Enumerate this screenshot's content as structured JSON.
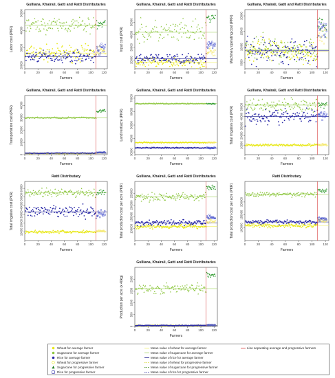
{
  "chart_data": [
    {
      "type": "scatter",
      "title": "Gulliana, Khairali, Gatti and Ratti Distributaries",
      "xlabel": "Farmers",
      "ylabel": "Labor cost (PKR)",
      "xlim": [
        0,
        125
      ],
      "ylim": [
        18000,
        52000
      ],
      "xticks": [
        0,
        20,
        40,
        60,
        80,
        100,
        120
      ],
      "yticks": [
        20000,
        30000,
        40000,
        50000
      ],
      "separator_x": 108,
      "series": [
        {
          "key": "wheat",
          "n": 108,
          "center": 27000,
          "spread": 2200
        },
        {
          "key": "sugarcane",
          "n": 108,
          "center": 43000,
          "spread": 2200
        },
        {
          "key": "rice",
          "n": 108,
          "center": 25000,
          "spread": 1600
        },
        {
          "key": "wheat_p",
          "n": 17,
          "center": 28500,
          "spread": 1200
        },
        {
          "key": "sugarcane_p",
          "n": 17,
          "center": 43500,
          "spread": 1500
        },
        {
          "key": "rice_p",
          "n": 17,
          "center": 29500,
          "spread": 1500
        }
      ],
      "means": {
        "wheat": 27000,
        "sugarcane": 43000,
        "rice": 25000
      }
    },
    {
      "type": "scatter",
      "title": "Gulliana, Khairali, Gatti and Ratti Distributaries",
      "xlabel": "Farmers",
      "ylabel": "Input cost (PKR)",
      "xlim": [
        0,
        125
      ],
      "ylim": [
        13000,
        60000
      ],
      "xticks": [
        0,
        20,
        40,
        60,
        80,
        100,
        120
      ],
      "yticks": [
        20000,
        30000,
        40000,
        50000
      ],
      "separator_x": 108,
      "series": [
        {
          "key": "wheat",
          "n": 108,
          "center": 18000,
          "spread": 2000
        },
        {
          "key": "sugarcane",
          "n": 108,
          "center": 42000,
          "spread": 4500
        },
        {
          "key": "rice",
          "n": 108,
          "center": 21000,
          "spread": 1800
        },
        {
          "key": "wheat_p",
          "n": 17,
          "center": 26500,
          "spread": 1500
        },
        {
          "key": "sugarcane_p",
          "n": 17,
          "center": 54000,
          "spread": 2000
        },
        {
          "key": "rice_p",
          "n": 17,
          "center": 32500,
          "spread": 1500
        }
      ],
      "means": {
        "wheat": 18000,
        "sugarcane": 42000,
        "rice": 21000
      }
    },
    {
      "type": "scatter",
      "title": "Gulliana, Khairali, Gatti and Ratti Distributaries",
      "xlabel": "Farmers",
      "ylabel": "Machinery operating cost (PKR)",
      "xlim": [
        0,
        125
      ],
      "ylim": [
        3000,
        22000
      ],
      "xticks": [
        0,
        20,
        40,
        60,
        80,
        100,
        120
      ],
      "yticks": [
        5000,
        10000,
        15000,
        20000
      ],
      "separator_x": 108,
      "series": [
        {
          "key": "wheat",
          "n": 108,
          "center": 8500,
          "spread": 1900
        },
        {
          "key": "sugarcane",
          "n": 108,
          "center": 9200,
          "spread": 2000
        },
        {
          "key": "rice",
          "n": 108,
          "center": 8800,
          "spread": 2200
        },
        {
          "key": "wheat_p",
          "n": 17,
          "center": 14500,
          "spread": 1500
        },
        {
          "key": "sugarcane_p",
          "n": 17,
          "center": 16500,
          "spread": 1500
        },
        {
          "key": "rice_p",
          "n": 17,
          "center": 15500,
          "spread": 1500
        }
      ],
      "means": {
        "wheat": 8500,
        "sugarcane": 9200,
        "rice": 8800
      }
    },
    {
      "type": "scatter",
      "title": "Gulliana, Khairali, Gatti and Ratti Distributaries",
      "xlabel": "Farmers",
      "ylabel": "Transportation cost (PKR)",
      "xlim": [
        0,
        125
      ],
      "ylim": [
        0,
        48000
      ],
      "xticks": [
        0,
        20,
        40,
        60,
        80,
        100,
        120
      ],
      "yticks": [
        0,
        10000,
        20000,
        30000,
        40000
      ],
      "separator_x": 108,
      "series": [
        {
          "key": "wheat",
          "n": 108,
          "center": 1000,
          "spread": 150
        },
        {
          "key": "sugarcane",
          "n": 108,
          "center": 30000,
          "spread": 300
        },
        {
          "key": "rice",
          "n": 108,
          "center": 1200,
          "spread": 150
        },
        {
          "key": "wheat_p",
          "n": 17,
          "center": 1500,
          "spread": 150
        },
        {
          "key": "sugarcane_p",
          "n": 17,
          "center": 35500,
          "spread": 600
        },
        {
          "key": "rice_p",
          "n": 17,
          "center": 1700,
          "spread": 150
        }
      ],
      "means": {
        "wheat": 1000,
        "sugarcane": 30000,
        "rice": 1200
      }
    },
    {
      "type": "scatter",
      "title": "Gulliana, Khairali, Gatti and Ratti Distributaries",
      "xlabel": "Farmers",
      "ylabel": "Land rent/acre (PKR)",
      "xlim": [
        0,
        125
      ],
      "ylim": [
        28000,
        72000
      ],
      "xticks": [
        0,
        20,
        40,
        60,
        80,
        100,
        120
      ],
      "yticks": [
        30000,
        40000,
        50000,
        60000,
        70000
      ],
      "separator_x": null,
      "series": [
        {
          "key": "wheat",
          "n": 108,
          "center": 37000,
          "spread": 200
        },
        {
          "key": "sugarcane",
          "n": 108,
          "center": 66000,
          "spread": 200
        },
        {
          "key": "rice",
          "n": 108,
          "center": 33000,
          "spread": 200
        },
        {
          "key": "wheat_p",
          "n": 17,
          "center": 37000,
          "spread": 200
        },
        {
          "key": "sugarcane_p",
          "n": 17,
          "center": 66000,
          "spread": 200
        },
        {
          "key": "rice_p",
          "n": 17,
          "center": 33000,
          "spread": 200
        }
      ],
      "means": {
        "wheat": 37000,
        "sugarcane": 66000,
        "rice": 33000
      }
    },
    {
      "type": "scatter",
      "title": "Gulliana, Khairali, Gatti and Ratti Distributaries",
      "xlabel": "Farmers",
      "ylabel": "Total irrigation cost (PKR)",
      "xlim": [
        0,
        125
      ],
      "ylim": [
        0,
        62000
      ],
      "xticks": [
        0,
        20,
        40,
        60,
        80,
        100,
        120
      ],
      "yticks": [
        10000,
        20000,
        30000,
        40000,
        50000
      ],
      "separator_x": 108,
      "series": [
        {
          "key": "wheat",
          "n": 108,
          "center": 10000,
          "spread": 600
        },
        {
          "key": "sugarcane",
          "n": 108,
          "center": 52000,
          "spread": 3500
        },
        {
          "key": "rice",
          "n": 108,
          "center": 40000,
          "spread": 4000
        },
        {
          "key": "wheat_p",
          "n": 17,
          "center": 10500,
          "spread": 500
        },
        {
          "key": "sugarcane_p",
          "n": 17,
          "center": 53000,
          "spread": 2000
        },
        {
          "key": "rice_p",
          "n": 17,
          "center": 42000,
          "spread": 2500
        }
      ],
      "means": {
        "wheat": 10000,
        "sugarcane": 52000,
        "rice": 40000
      }
    },
    {
      "type": "scatter",
      "title": "Ratti Distributary",
      "xlabel": "Farmers",
      "ylabel": "Total irrigation cost (PKR)",
      "xlim": [
        0,
        125
      ],
      "ylim": [
        0,
        68000
      ],
      "xticks": [
        0,
        20,
        40,
        60,
        80,
        100,
        120
      ],
      "yticks": [
        10000,
        20000,
        30000,
        40000,
        50000,
        60000
      ],
      "separator_x": 108,
      "series": [
        {
          "key": "wheat",
          "n": 108,
          "center": 10000,
          "spread": 800
        },
        {
          "key": "sugarcane",
          "n": 108,
          "center": 55000,
          "spread": 2500
        },
        {
          "key": "rice",
          "n": 108,
          "center": 33000,
          "spread": 3500
        },
        {
          "key": "wheat_p",
          "n": 17,
          "center": 11000,
          "spread": 500
        },
        {
          "key": "sugarcane_p",
          "n": 17,
          "center": 55000,
          "spread": 2000
        },
        {
          "key": "rice_p",
          "n": 17,
          "center": 30000,
          "spread": 2500
        }
      ],
      "means": {
        "wheat": 10000,
        "sugarcane": 55000,
        "rice": 33000
      }
    },
    {
      "type": "scatter",
      "title": "Gulliana, Khairali, Gatti and Ratti Distributaries",
      "xlabel": "Farmers",
      "ylabel": "Total production cost per acre (PKR)",
      "xlim": [
        0,
        125
      ],
      "ylim": [
        50000,
        300000
      ],
      "xticks": [
        0,
        20,
        40,
        60,
        80,
        100,
        120
      ],
      "yticks": [
        100000,
        150000,
        200000,
        250000
      ],
      "separator_x": 108,
      "series": [
        {
          "key": "wheat",
          "n": 108,
          "center": 110000,
          "spread": 5000
        },
        {
          "key": "sugarcane",
          "n": 108,
          "center": 235000,
          "spread": 8000
        },
        {
          "key": "rice",
          "n": 108,
          "center": 125000,
          "spread": 6000
        },
        {
          "key": "wheat_p",
          "n": 17,
          "center": 130000,
          "spread": 5000
        },
        {
          "key": "sugarcane_p",
          "n": 17,
          "center": 275000,
          "spread": 5000
        },
        {
          "key": "rice_p",
          "n": 17,
          "center": 150000,
          "spread": 5000
        }
      ],
      "means": {
        "wheat": 110000,
        "sugarcane": 235000,
        "rice": 125000
      }
    },
    {
      "type": "scatter",
      "title": "Ratti Distributary",
      "xlabel": "Farmers",
      "ylabel": "Total production cost per acre (PKR)",
      "xlim": [
        0,
        125
      ],
      "ylim": [
        50000,
        280000
      ],
      "xticks": [
        0,
        20,
        40,
        60,
        80,
        100,
        120
      ],
      "yticks": [
        100000,
        150000,
        200000
      ],
      "separator_x": 108,
      "series": [
        {
          "key": "wheat",
          "n": 108,
          "center": 108000,
          "spread": 4000
        },
        {
          "key": "sugarcane",
          "n": 108,
          "center": 230000,
          "spread": 4000
        },
        {
          "key": "rice",
          "n": 108,
          "center": 122000,
          "spread": 4000
        },
        {
          "key": "wheat_p",
          "n": 17,
          "center": 128000,
          "spread": 4000
        },
        {
          "key": "sugarcane_p",
          "n": 17,
          "center": 245000,
          "spread": 4000
        },
        {
          "key": "rice_p",
          "n": 17,
          "center": 135000,
          "spread": 4000
        }
      ],
      "means": {
        "wheat": 108000,
        "sugarcane": 230000,
        "rice": 122000
      }
    },
    {
      "type": "scatter",
      "title": "Gulliana, Khairali, Gatti and Ratti Distributaries",
      "xlabel": "Farmers",
      "ylabel": "Production per acre (x 40kg)",
      "xlim": [
        0,
        125
      ],
      "ylim": [
        0,
        2500
      ],
      "xticks": [
        0,
        20,
        40,
        60,
        80,
        100,
        120
      ],
      "yticks": [
        0,
        500,
        1000,
        1500,
        2000
      ],
      "separator_x": 108,
      "series": [
        {
          "key": "wheat",
          "n": 108,
          "center": 40,
          "spread": 8
        },
        {
          "key": "sugarcane",
          "n": 108,
          "center": 1600,
          "spread": 100
        },
        {
          "key": "rice",
          "n": 108,
          "center": 45,
          "spread": 8
        },
        {
          "key": "wheat_p",
          "n": 17,
          "center": 55,
          "spread": 8
        },
        {
          "key": "sugarcane_p",
          "n": 17,
          "center": 2180,
          "spread": 60
        },
        {
          "key": "rice_p",
          "n": 17,
          "center": 60,
          "spread": 8
        }
      ],
      "means": {
        "wheat": 40,
        "sugarcane": 1600,
        "rice": 45
      }
    }
  ],
  "legend": [
    {
      "label": "Wheat for average farmer",
      "symbol": "dot",
      "color": "#e8e81a"
    },
    {
      "label": "Sugarcane for average farmer",
      "symbol": "dot",
      "color": "#8dc63f"
    },
    {
      "label": "Rice for average farmer",
      "symbol": "dot",
      "color": "#2a2aa8"
    },
    {
      "label": "Wheat for progressive farmer",
      "symbol": "circle",
      "color": "#e8e81a"
    },
    {
      "label": "Sugarcane for progressive farmer",
      "symbol": "triangle",
      "color": "#1a7a1a"
    },
    {
      "label": "Rice for progressive farmer",
      "symbol": "square",
      "color": "#1a1aa0"
    },
    {
      "label": "Mean value of wheat for average farmer",
      "symbol": "line",
      "color": "#f0f07a"
    },
    {
      "label": "Mean value of sugarcane for average farmer",
      "symbol": "line",
      "color": "#a8d66a"
    },
    {
      "label": "Mean value of rice for average farmer",
      "symbol": "line",
      "color": "#3a3a9a"
    },
    {
      "label": "Mean value of wheat for progressive farmer",
      "symbol": "dash",
      "color": "#e0e060"
    },
    {
      "label": "Mean value of sugarcane for progressive farmer",
      "symbol": "dash",
      "color": "#5a9a3a"
    },
    {
      "label": "Mean value of rice for progressive farmer",
      "symbol": "dash",
      "color": "#4040a8"
    },
    {
      "label": "Line separating average and progressive farmers",
      "symbol": "line",
      "color": "#d94040"
    }
  ],
  "colors": {
    "wheat": "#e8e81a",
    "sugarcane": "#8dc63f",
    "rice": "#2a2aa8",
    "wheat_p": "#f2e24a",
    "sugarcane_p": "#2f9a2f",
    "rice_p": "#3a46c8",
    "separator": "#d94040"
  }
}
